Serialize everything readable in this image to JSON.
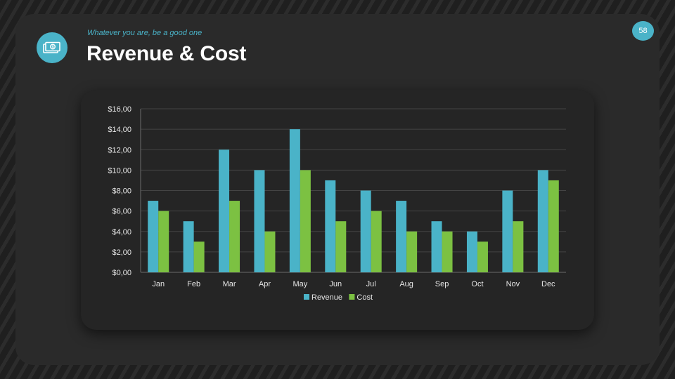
{
  "slide": {
    "subtitle": "Whatever you are, be a good one",
    "title": "Revenue & Cost",
    "page_number": "58",
    "header_icon": "money-bill-icon"
  },
  "colors": {
    "accent": "#4ab3c8",
    "revenue": "#4ab3c8",
    "cost": "#7cc142",
    "background": "#2a2a2a"
  },
  "chart_data": {
    "type": "bar",
    "title": "",
    "xlabel": "",
    "ylabel": "",
    "categories": [
      "Jan",
      "Feb",
      "Mar",
      "Apr",
      "May",
      "Jun",
      "Jul",
      "Aug",
      "Sep",
      "Oct",
      "Nov",
      "Dec"
    ],
    "series": [
      {
        "name": "Revenue",
        "color": "#4ab3c8",
        "values": [
          7,
          5,
          12,
          10,
          14,
          9,
          8,
          7,
          5,
          4,
          8,
          10
        ]
      },
      {
        "name": "Cost",
        "color": "#7cc142",
        "values": [
          6,
          3,
          7,
          4,
          10,
          5,
          6,
          4,
          4,
          3,
          5,
          9
        ]
      }
    ],
    "ylim": [
      0,
      16
    ],
    "yticks": [
      "$0,00",
      "$2,00",
      "$4,00",
      "$6,00",
      "$8,00",
      "$10,00",
      "$12,00",
      "$14,00",
      "$16,00"
    ],
    "grid": true,
    "legend": "bottom"
  }
}
